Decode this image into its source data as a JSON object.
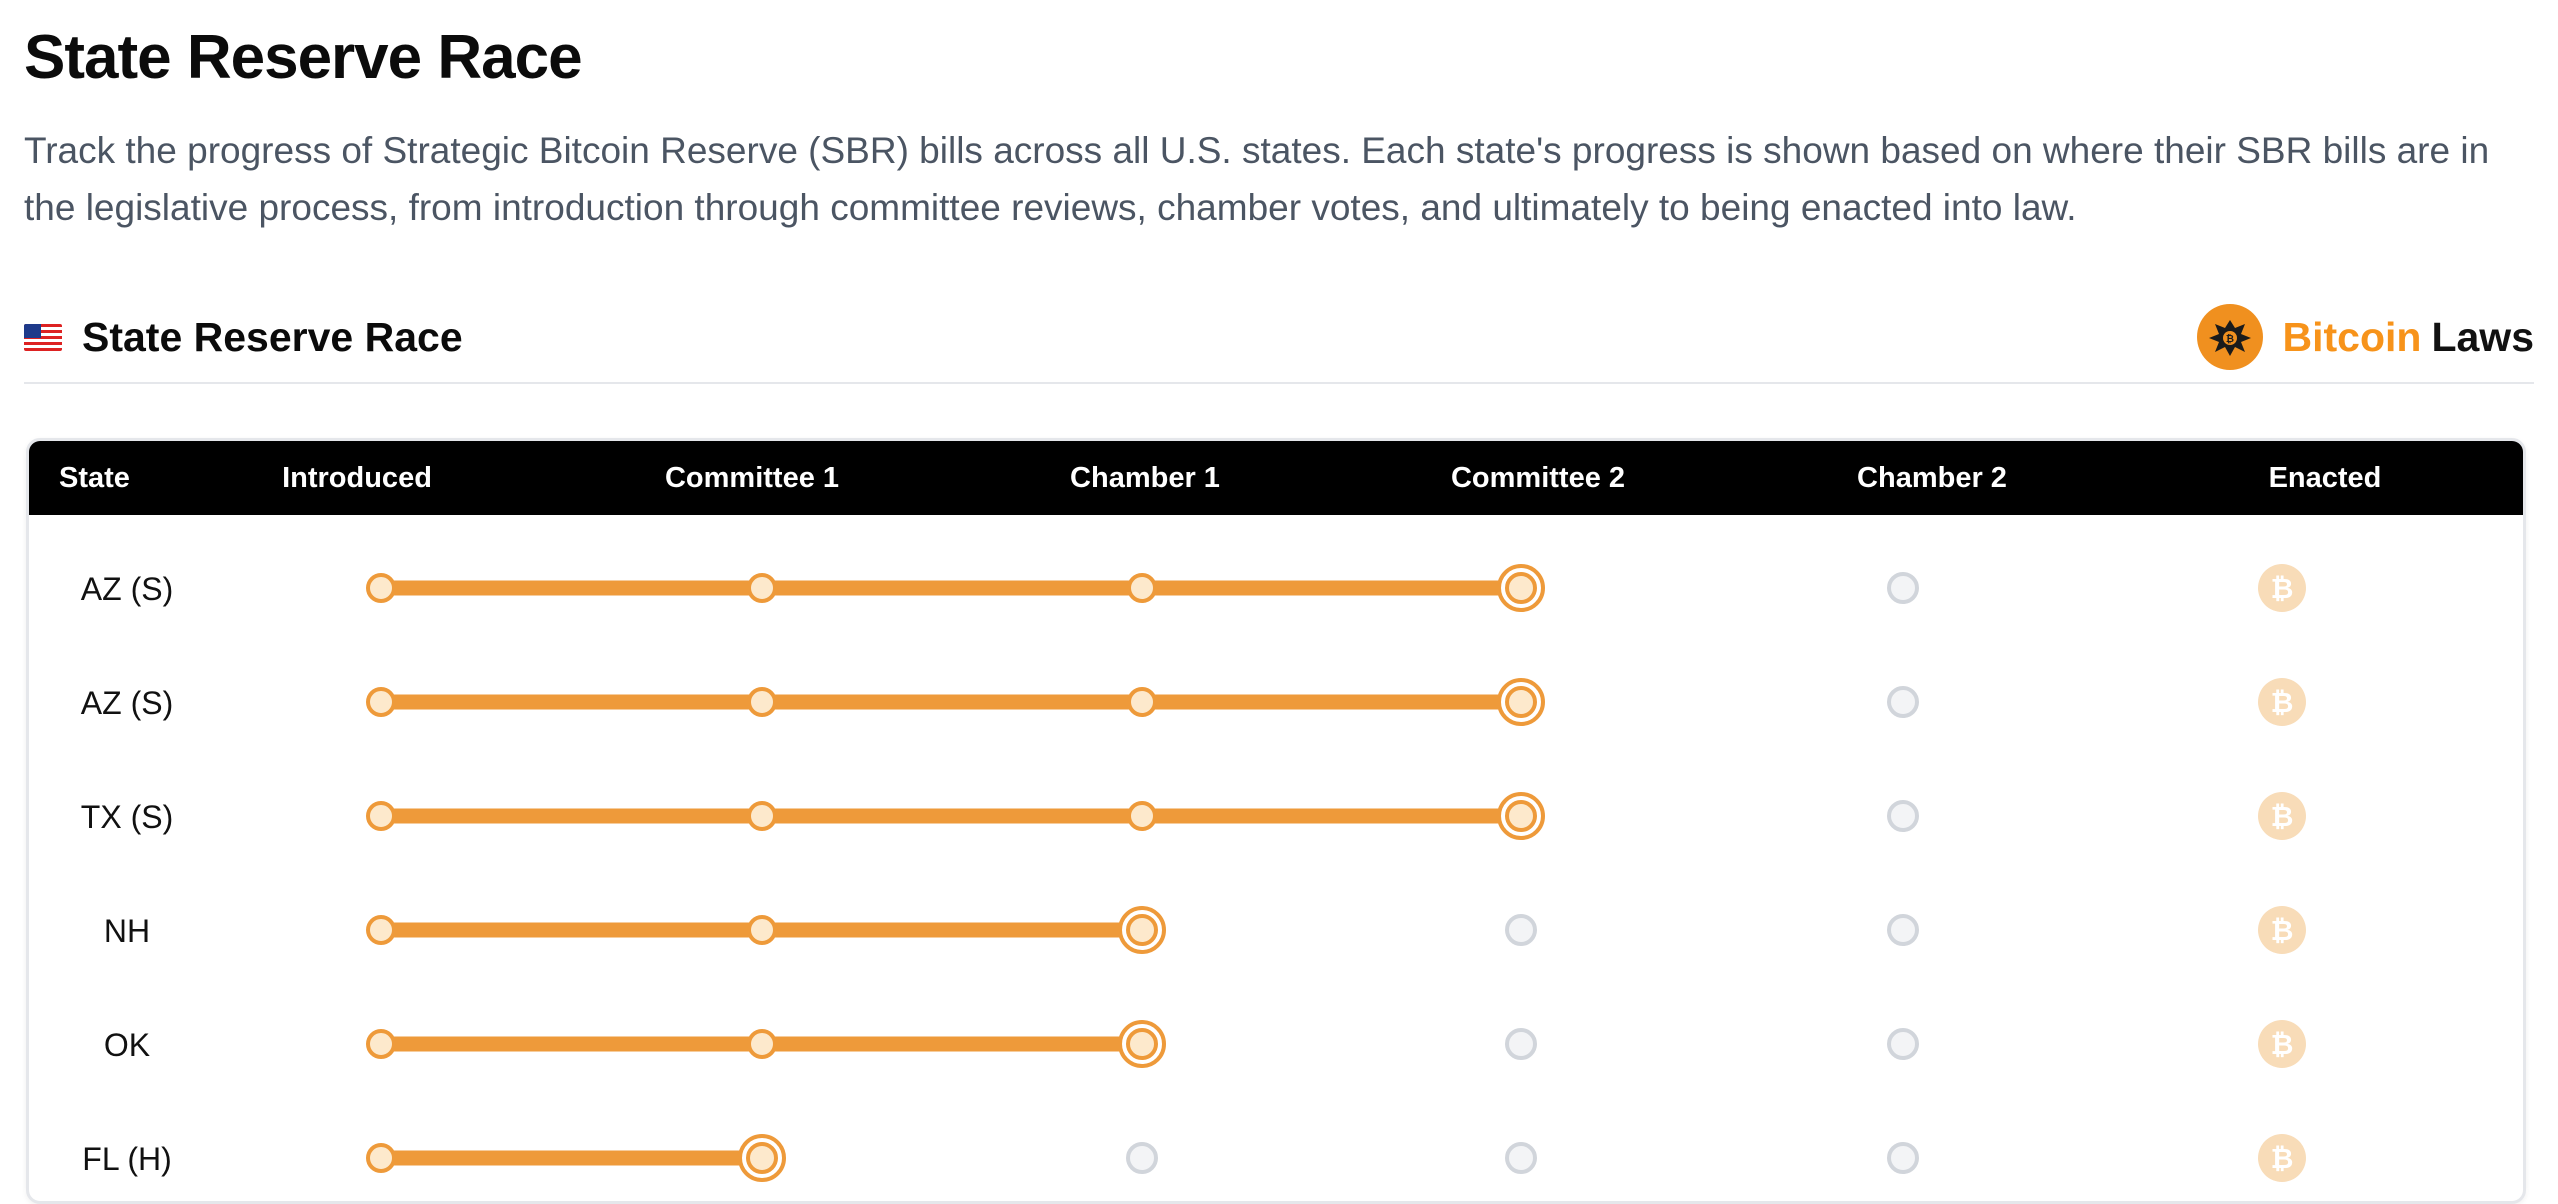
{
  "page": {
    "title": "State Reserve Race",
    "description": "Track the progress of Strategic Bitcoin Reserve (SBR) bills across all U.S. states. Each state's progress is shown based on where their SBR bills are in the legislative process, from introduction through committee reviews, chamber votes, and ultimately to being enacted into law."
  },
  "section": {
    "flag_icon": "us-flag-icon",
    "title": "State Reserve Race",
    "brand_primary": "Bitcoin",
    "brand_secondary": "Laws",
    "brand_logo_icon": "eagle-seal-icon"
  },
  "table": {
    "columns": [
      "State",
      "Introduced",
      "Committee 1",
      "Chamber 1",
      "Committee 2",
      "Chamber 2",
      "Enacted"
    ],
    "rows": [
      {
        "state": "AZ  (S)",
        "stage": 3
      },
      {
        "state": "AZ  (S)",
        "stage": 3
      },
      {
        "state": "TX  (S)",
        "stage": 3
      },
      {
        "state": "NH",
        "stage": 2
      },
      {
        "state": "OK",
        "stage": 2
      },
      {
        "state": "FL  (H)",
        "stage": 1
      }
    ]
  },
  "colors": {
    "accent": "#ee9a3a",
    "node_fill": "#fde9cc",
    "inactive_node": "#d1d5db",
    "enacted_icon": "#f8dcb8",
    "header_bg": "#000000"
  }
}
